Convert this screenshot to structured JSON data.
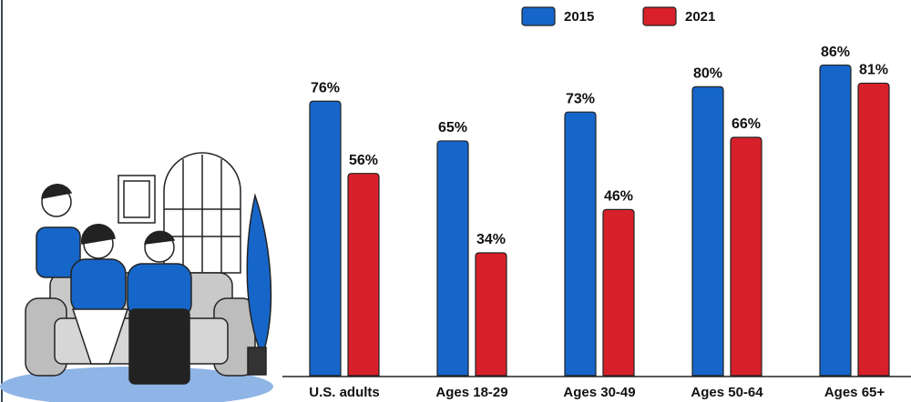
{
  "chart_data": {
    "type": "bar",
    "categories": [
      "U.S. adults",
      "Ages 18-29",
      "Ages 30-49",
      "Ages 50-64",
      "Ages 65+"
    ],
    "series": [
      {
        "name": "2015",
        "color": "#1666c9",
        "values": [
          76,
          65,
          73,
          80,
          86
        ],
        "value_labels": [
          "76%",
          "65%",
          "73%",
          "80%",
          "86%"
        ]
      },
      {
        "name": "2021",
        "color": "#d8202a",
        "values": [
          56,
          34,
          46,
          66,
          81
        ],
        "value_labels": [
          "56%",
          "34%",
          "46%",
          "66%",
          "81%"
        ]
      }
    ]
  }
}
